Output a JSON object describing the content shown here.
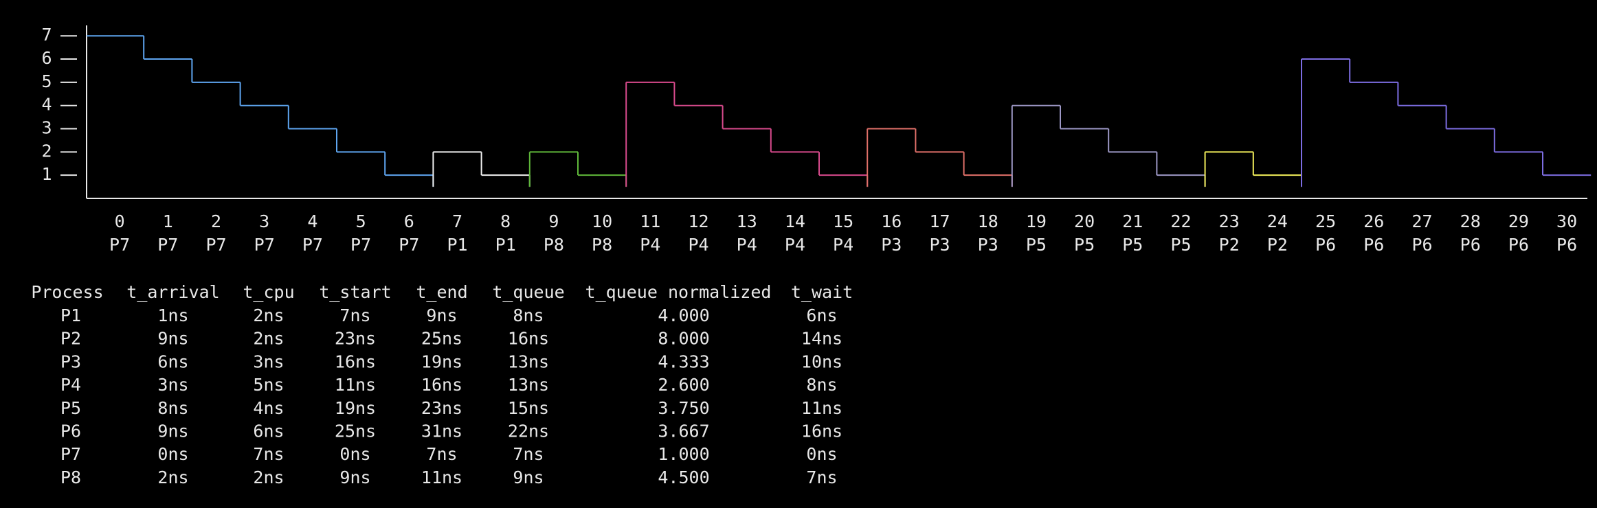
{
  "chart_data": {
    "type": "step",
    "x": [
      0,
      1,
      2,
      3,
      4,
      5,
      6,
      7,
      8,
      9,
      10,
      11,
      12,
      13,
      14,
      15,
      16,
      17,
      18,
      19,
      20,
      21,
      22,
      23,
      24,
      25,
      26,
      27,
      28,
      29,
      30
    ],
    "labels": [
      "P7",
      "P7",
      "P7",
      "P7",
      "P7",
      "P7",
      "P7",
      "P1",
      "P1",
      "P8",
      "P8",
      "P4",
      "P4",
      "P4",
      "P4",
      "P4",
      "P3",
      "P3",
      "P3",
      "P5",
      "P5",
      "P5",
      "P5",
      "P2",
      "P2",
      "P6",
      "P6",
      "P6",
      "P6",
      "P6",
      "P6"
    ],
    "values": [
      7,
      6,
      5,
      4,
      3,
      2,
      1,
      2,
      1,
      2,
      1,
      5,
      4,
      3,
      2,
      1,
      3,
      2,
      1,
      4,
      3,
      2,
      1,
      2,
      1,
      6,
      5,
      4,
      3,
      2,
      1
    ],
    "colors": [
      "#5ea5f0",
      "#5ea5f0",
      "#5ea5f0",
      "#5ea5f0",
      "#5ea5f0",
      "#5ea5f0",
      "#5ea5f0",
      "#f2f2f2",
      "#f2f2f2",
      "#5fb83a",
      "#5fb83a",
      "#d84a8c",
      "#d84a8c",
      "#d84a8c",
      "#d84a8c",
      "#d84a8c",
      "#e2716a",
      "#e2716a",
      "#e2716a",
      "#9d98c6",
      "#9d98c6",
      "#9d98c6",
      "#9d98c6",
      "#f2ee5a",
      "#f2ee5a",
      "#7d6de2",
      "#7d6de2",
      "#7d6de2",
      "#7d6de2",
      "#7d6de2",
      "#7d6de2"
    ],
    "ylim": [
      0,
      7.45
    ],
    "yticks": [
      1,
      2,
      3,
      4,
      5,
      6,
      7
    ]
  },
  "table": {
    "header": [
      "Process",
      "t_arrival",
      "t_cpu",
      "t_start",
      "t_end",
      "t_queue",
      "t_queue normalized",
      "t_wait"
    ],
    "rows": [
      {
        "color": "#f2f2f2",
        "cells": [
          "P1",
          "1ns",
          "2ns",
          "7ns",
          "9ns",
          "8ns",
          "4.000",
          "6ns"
        ]
      },
      {
        "color": "#f2ee5a",
        "cells": [
          "P2",
          "9ns",
          "2ns",
          "23ns",
          "25ns",
          "16ns",
          "8.000",
          "14ns"
        ]
      },
      {
        "color": "#e2716a",
        "cells": [
          "P3",
          "6ns",
          "3ns",
          "16ns",
          "19ns",
          "13ns",
          "4.333",
          "10ns"
        ]
      },
      {
        "color": "#d84a8c",
        "cells": [
          "P4",
          "3ns",
          "5ns",
          "11ns",
          "16ns",
          "13ns",
          "2.600",
          "8ns"
        ]
      },
      {
        "color": "#9d98c6",
        "cells": [
          "P5",
          "8ns",
          "4ns",
          "19ns",
          "23ns",
          "15ns",
          "3.750",
          "11ns"
        ]
      },
      {
        "color": "#7d6de2",
        "cells": [
          "P6",
          "9ns",
          "6ns",
          "25ns",
          "31ns",
          "22ns",
          "3.667",
          "16ns"
        ]
      },
      {
        "color": "#5ea5f0",
        "cells": [
          "P7",
          "0ns",
          "7ns",
          "0ns",
          "7ns",
          "7ns",
          "1.000",
          "0ns"
        ]
      },
      {
        "color": "#5fb83a",
        "cells": [
          "P8",
          "2ns",
          "2ns",
          "9ns",
          "11ns",
          "9ns",
          "4.500",
          "7ns"
        ]
      }
    ]
  }
}
